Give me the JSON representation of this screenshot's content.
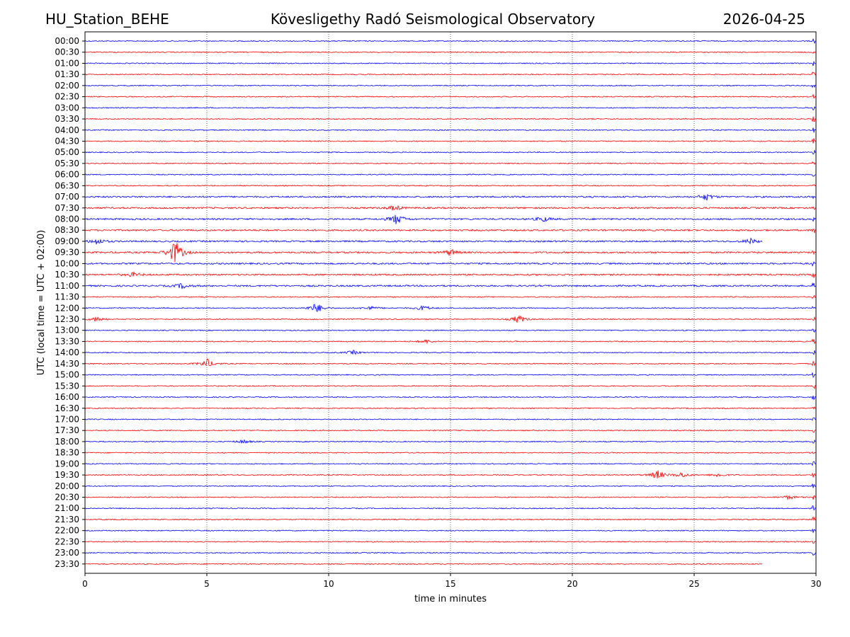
{
  "header": {
    "station": "HU_Station_BEHE",
    "observatory": "Kövesligethy Radó Seismological Observatory",
    "date": "2026-04-25"
  },
  "chart_data": {
    "type": "line",
    "title": "Kövesligethy Radó Seismological Observatory",
    "xlabel": "time in minutes",
    "ylabel": "UTC (local time = UTC + 02:00)",
    "xlim": [
      0,
      30
    ],
    "xticks": [
      "0",
      "5",
      "10",
      "15",
      "20",
      "25",
      "30"
    ],
    "grid": "vertical dotted at 5-minute intervals",
    "colors": {
      "even_traces": "#0000ff",
      "odd_traces": "#ff0000",
      "grid": "#000000"
    },
    "rows": [
      "00:00",
      "00:30",
      "01:00",
      "01:30",
      "02:00",
      "02:30",
      "03:00",
      "03:30",
      "04:00",
      "04:30",
      "05:00",
      "05:30",
      "06:00",
      "06:30",
      "07:00",
      "07:30",
      "08:00",
      "08:30",
      "09:00",
      "09:30",
      "10:00",
      "10:30",
      "11:00",
      "11:30",
      "12:00",
      "12:30",
      "13:00",
      "13:30",
      "14:00",
      "14:30",
      "15:00",
      "15:30",
      "16:00",
      "16:30",
      "17:00",
      "17:30",
      "18:00",
      "18:30",
      "19:00",
      "19:30",
      "20:00",
      "20:30",
      "21:00",
      "21:30",
      "22:00",
      "22:30",
      "23:00",
      "23:30"
    ],
    "trace_end_minutes": {
      "09:00": 27.8,
      "23:30": 27.8
    },
    "events": [
      {
        "row": "07:00",
        "minute": 25.5,
        "amplitude": 5
      },
      {
        "row": "07:30",
        "minute": 12.7,
        "amplitude": 4
      },
      {
        "row": "08:00",
        "minute": 12.8,
        "amplitude": 8
      },
      {
        "row": "08:00",
        "minute": 18.8,
        "amplitude": 4
      },
      {
        "row": "09:00",
        "minute": 0.5,
        "amplitude": 5
      },
      {
        "row": "09:00",
        "minute": 27.3,
        "amplitude": 4
      },
      {
        "row": "09:30",
        "minute": 3.7,
        "amplitude": 18
      },
      {
        "row": "09:30",
        "minute": 15.0,
        "amplitude": 5
      },
      {
        "row": "10:30",
        "minute": 2.0,
        "amplitude": 3
      },
      {
        "row": "11:00",
        "minute": 4.0,
        "amplitude": 4
      },
      {
        "row": "12:00",
        "minute": 9.5,
        "amplitude": 8
      },
      {
        "row": "12:00",
        "minute": 11.7,
        "amplitude": 3
      },
      {
        "row": "12:00",
        "minute": 13.9,
        "amplitude": 4
      },
      {
        "row": "12:30",
        "minute": 0.5,
        "amplitude": 4
      },
      {
        "row": "12:30",
        "minute": 17.8,
        "amplitude": 6
      },
      {
        "row": "13:30",
        "minute": 14.0,
        "amplitude": 3
      },
      {
        "row": "14:00",
        "minute": 11.0,
        "amplitude": 3
      },
      {
        "row": "14:30",
        "minute": 5.0,
        "amplitude": 7
      },
      {
        "row": "18:00",
        "minute": 6.5,
        "amplitude": 3
      },
      {
        "row": "19:30",
        "minute": 23.5,
        "amplitude": 7
      },
      {
        "row": "19:30",
        "minute": 24.5,
        "amplitude": 4
      },
      {
        "row": "19:30",
        "minute": 26.0,
        "amplitude": 3
      },
      {
        "row": "20:30",
        "minute": 28.9,
        "amplitude": 3
      }
    ],
    "persistent_noise_minute": 29.9
  }
}
